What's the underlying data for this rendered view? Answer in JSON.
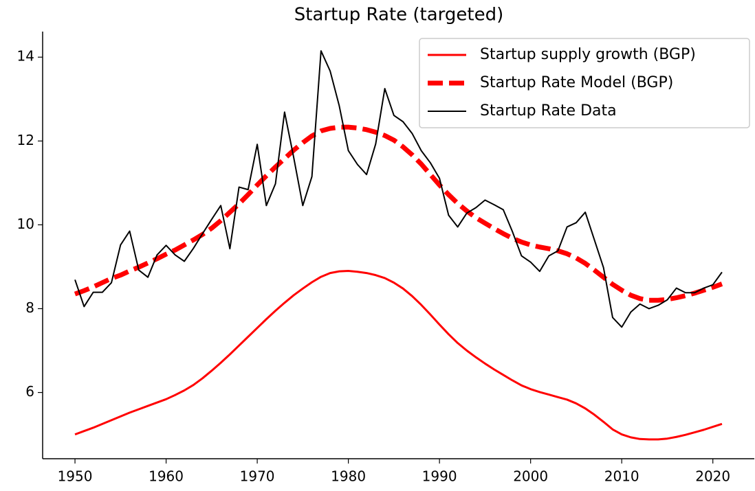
{
  "chart_data": {
    "type": "line",
    "title": "Startup Rate (targeted)",
    "x": [
      1950,
      1951,
      1952,
      1953,
      1954,
      1955,
      1956,
      1957,
      1958,
      1959,
      1960,
      1961,
      1962,
      1963,
      1964,
      1965,
      1966,
      1967,
      1968,
      1969,
      1970,
      1971,
      1972,
      1973,
      1974,
      1975,
      1976,
      1977,
      1978,
      1979,
      1980,
      1981,
      1982,
      1983,
      1984,
      1985,
      1986,
      1987,
      1988,
      1989,
      1990,
      1991,
      1992,
      1993,
      1994,
      1995,
      1996,
      1997,
      1998,
      1999,
      2000,
      2001,
      2002,
      2003,
      2004,
      2005,
      2006,
      2007,
      2008,
      2009,
      2010,
      2011,
      2012,
      2013,
      2014,
      2015,
      2016,
      2017,
      2018,
      2019,
      2020,
      2021
    ],
    "series": [
      {
        "name": "Startup supply growth (BGP)",
        "color": "#ff0000",
        "linestyle": "solid",
        "values": [
          5.0,
          5.08,
          5.16,
          5.25,
          5.34,
          5.43,
          5.52,
          5.6,
          5.68,
          5.76,
          5.84,
          5.94,
          6.05,
          6.18,
          6.34,
          6.52,
          6.71,
          6.91,
          7.12,
          7.33,
          7.54,
          7.75,
          7.95,
          8.14,
          8.32,
          8.48,
          8.63,
          8.76,
          8.85,
          8.89,
          8.9,
          8.88,
          8.85,
          8.8,
          8.73,
          8.62,
          8.48,
          8.3,
          8.09,
          7.86,
          7.62,
          7.39,
          7.18,
          7.0,
          6.84,
          6.69,
          6.55,
          6.42,
          6.29,
          6.17,
          6.08,
          6.01,
          5.95,
          5.89,
          5.83,
          5.74,
          5.62,
          5.47,
          5.3,
          5.12,
          5.0,
          4.93,
          4.89,
          4.88,
          4.88,
          4.9,
          4.94,
          4.99,
          5.05,
          5.11,
          5.18,
          5.25
        ]
      },
      {
        "name": "Startup Rate Model (BGP)",
        "color": "#ff0000",
        "linestyle": "dashed",
        "values": [
          8.35,
          8.43,
          8.52,
          8.62,
          8.72,
          8.8,
          8.9,
          8.99,
          9.09,
          9.19,
          9.3,
          9.4,
          9.52,
          9.64,
          9.77,
          9.92,
          10.1,
          10.3,
          10.5,
          10.72,
          10.95,
          11.17,
          11.38,
          11.58,
          11.78,
          11.96,
          12.12,
          12.24,
          12.3,
          12.33,
          12.33,
          12.31,
          12.27,
          12.21,
          12.13,
          12.02,
          11.86,
          11.67,
          11.45,
          11.2,
          10.95,
          10.72,
          10.51,
          10.33,
          10.17,
          10.04,
          9.91,
          9.79,
          9.68,
          9.59,
          9.52,
          9.47,
          9.43,
          9.38,
          9.31,
          9.21,
          9.08,
          8.92,
          8.75,
          8.58,
          8.44,
          8.32,
          8.24,
          8.2,
          8.2,
          8.22,
          8.26,
          8.31,
          8.37,
          8.44,
          8.51,
          8.59
        ]
      },
      {
        "name": "Startup Rate Data",
        "color": "#000000",
        "linestyle": "thin",
        "values": [
          8.69,
          8.05,
          8.39,
          8.39,
          8.62,
          9.52,
          9.85,
          8.92,
          8.75,
          9.28,
          9.51,
          9.28,
          9.13,
          9.44,
          9.79,
          10.13,
          10.46,
          9.43,
          10.9,
          10.84,
          11.92,
          10.46,
          10.98,
          12.69,
          11.61,
          10.46,
          11.15,
          14.15,
          13.67,
          12.84,
          11.77,
          11.44,
          11.2,
          11.93,
          13.25,
          12.61,
          12.46,
          12.18,
          11.77,
          11.48,
          11.11,
          10.23,
          9.95,
          10.28,
          10.41,
          10.59,
          10.48,
          10.36,
          9.84,
          9.26,
          9.11,
          8.89,
          9.26,
          9.38,
          9.95,
          10.05,
          10.3,
          9.64,
          8.98,
          7.79,
          7.56,
          7.92,
          8.11,
          8.0,
          8.08,
          8.21,
          8.49,
          8.38,
          8.38,
          8.49,
          8.57,
          8.87
        ]
      }
    ],
    "xlim": [
      1946.45,
      2024.55
    ],
    "xticks": [
      1950,
      1960,
      1970,
      1980,
      1990,
      2000,
      2010,
      2020
    ],
    "ylim": [
      4.42,
      14.61
    ],
    "yticks": [
      6,
      8,
      10,
      12,
      14
    ],
    "legend": "upper right"
  }
}
